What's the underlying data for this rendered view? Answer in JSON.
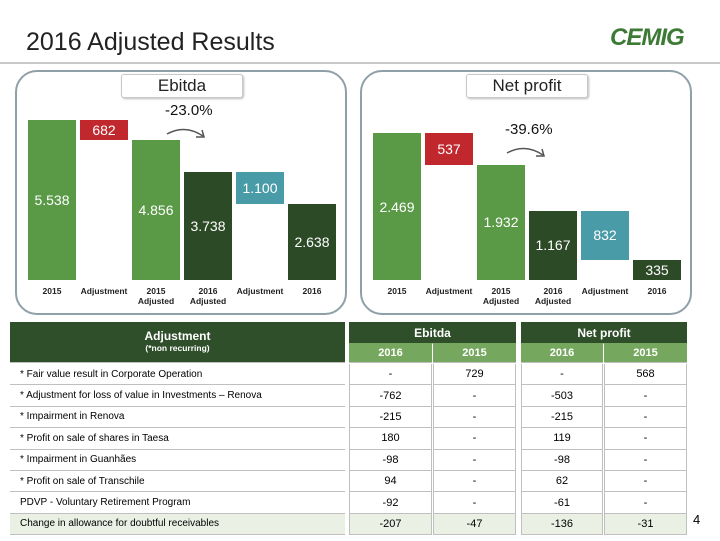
{
  "title": "2016 Adjusted Results",
  "logo": "CEMIG",
  "page_number": "4",
  "chart_data": [
    {
      "type": "waterfall",
      "title": "Ebitda",
      "annotation": "-23.0%",
      "categories": [
        "2015",
        "Adjustment",
        "2015 Adjusted",
        "2016 Adjusted",
        "Adjustment",
        "2016"
      ],
      "values": [
        5538,
        682,
        4856,
        3738,
        1100,
        2638
      ],
      "value_labels": [
        "5.538",
        "682",
        "4.856",
        "3.738",
        "1.100",
        "2.638"
      ],
      "measure": [
        "total",
        "decrease",
        "total",
        "total",
        "decrease",
        "total"
      ],
      "colors": [
        "#5a9a47",
        "#c0282d",
        "#5a9a47",
        "#2d4a27",
        "#4a9ba8",
        "#2d4a27"
      ]
    },
    {
      "type": "waterfall",
      "title": "Net profit",
      "annotation": "-39.6%",
      "categories": [
        "2015",
        "Adjustment",
        "2015 Adjusted",
        "2016 Adjusted",
        "Adjustment",
        "2016"
      ],
      "values": [
        2469,
        537,
        1932,
        1167,
        832,
        335
      ],
      "value_labels": [
        "2.469",
        "537",
        "1.932",
        "1.167",
        "832",
        "335"
      ],
      "measure": [
        "total",
        "decrease",
        "total",
        "total",
        "decrease",
        "total"
      ],
      "colors": [
        "#5a9a47",
        "#c0282d",
        "#5a9a47",
        "#2d4a27",
        "#4a9ba8",
        "#2d4a27"
      ]
    }
  ],
  "table": {
    "header": [
      "Adjustment",
      "(*non recurring)"
    ],
    "groups": [
      "Ebitda",
      "Net profit"
    ],
    "years": [
      "2016",
      "2015",
      "2016",
      "2015"
    ],
    "rows": [
      [
        "* Fair value result in Corporate Operation",
        "-",
        "729",
        "-",
        "568"
      ],
      [
        "* Adjustment for loss of value in Investments – Renova",
        "-762",
        "-",
        "-503",
        "-"
      ],
      [
        "* Impairment in Renova",
        "-215",
        "-",
        "-215",
        "-"
      ],
      [
        "* Profit on sale of shares in Taesa",
        "180",
        "-",
        "119",
        "-"
      ],
      [
        "* Impairment in Guanhães",
        "-98",
        "-",
        "-98",
        "-"
      ],
      [
        "* Profit on sale of Transchile",
        "94",
        "-",
        "62",
        "-"
      ],
      [
        "PDVP - Voluntary Retirement Program",
        "-92",
        "-",
        "-61",
        "-"
      ],
      [
        "Change in allowance for doubtful receivables",
        "-207",
        "-47",
        "-136",
        "-31"
      ]
    ]
  }
}
